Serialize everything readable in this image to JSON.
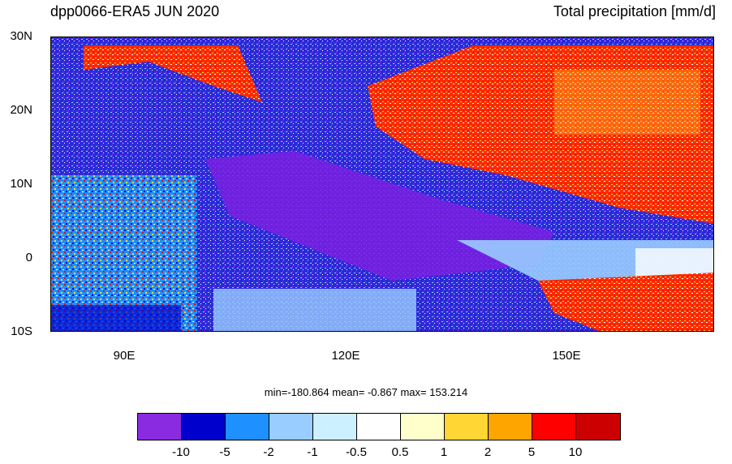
{
  "header": {
    "left_title": "dpp0066-ERA5 JUN 2020",
    "right_title": "Total precipitation [mm/d]"
  },
  "map": {
    "lat_labels": [
      "30N",
      "20N",
      "10N",
      "0",
      "10S"
    ],
    "lon_labels": [
      "90E",
      "120E",
      "150E"
    ],
    "extent_lon": [
      80,
      170
    ],
    "extent_lat": [
      -10,
      30
    ]
  },
  "stats": {
    "text": "min=-180.864  mean=  -0.867  max= 153.214"
  },
  "colorbar": {
    "colors": [
      "#8a2be2",
      "#0000cd",
      "#1e90ff",
      "#99ccff",
      "#ccf0ff",
      "#ffffff",
      "#ffffcc",
      "#ffd633",
      "#ffa500",
      "#ff0000",
      "#cc0000"
    ],
    "labels": [
      "-10",
      "-5",
      "-2",
      "-1",
      "-0.5",
      "0.5",
      "1",
      "2",
      "5",
      "10"
    ]
  }
}
